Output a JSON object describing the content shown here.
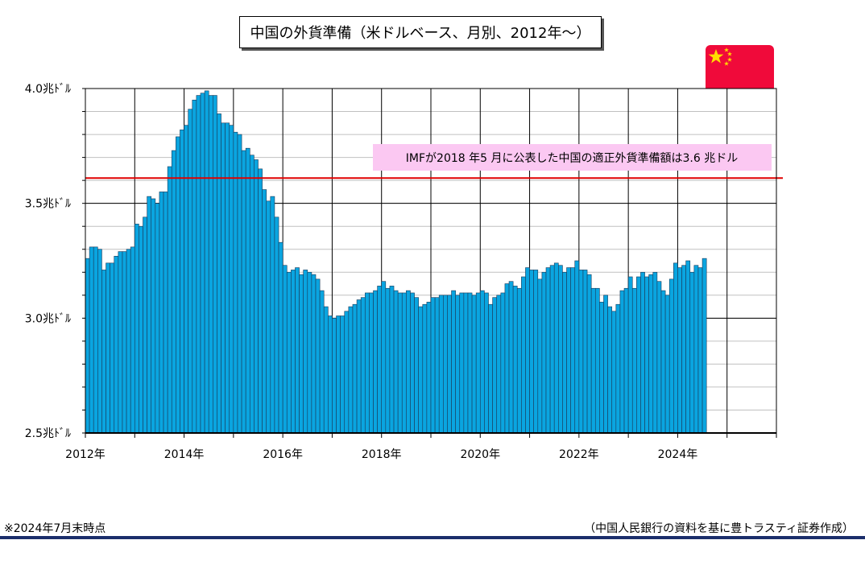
{
  "title": "中国の外貨準備（米ドルベース、月別、2012年～）",
  "flag_icon": "china-flag-icon",
  "note": "※2024年7月末時点",
  "source": "（中国人民銀行の資料を基に豊トラスティ証券作成）",
  "chart_data": {
    "type": "bar",
    "ylim": [
      2.5,
      4.0
    ],
    "y_ticks": [
      {
        "value": 4.0,
        "label": "4.0兆ﾄﾞﾙ"
      },
      {
        "value": 3.5,
        "label": "3.5兆ﾄﾞﾙ"
      },
      {
        "value": 3.0,
        "label": "3.0兆ﾄﾞﾙ"
      },
      {
        "value": 2.5,
        "label": "2.5兆ﾄﾞﾙ"
      }
    ],
    "x_labels": [
      "2012年",
      "2014年",
      "2016年",
      "2018年",
      "2020年",
      "2022年",
      "2024年"
    ],
    "x_start_year": 2012,
    "x_end_year": 2026,
    "bar_color": "#0aa5e0",
    "reference_line": {
      "value": 3.61,
      "color": "#e00000",
      "label": "IMFが2018 年5 月に公表した中国の適正外貨準備額は3.6 兆ドル"
    },
    "values": [
      3.26,
      3.31,
      3.31,
      3.3,
      3.21,
      3.24,
      3.24,
      3.27,
      3.29,
      3.29,
      3.3,
      3.31,
      3.41,
      3.4,
      3.44,
      3.53,
      3.52,
      3.5,
      3.55,
      3.55,
      3.66,
      3.73,
      3.79,
      3.82,
      3.84,
      3.91,
      3.95,
      3.97,
      3.98,
      3.99,
      3.97,
      3.97,
      3.89,
      3.85,
      3.85,
      3.84,
      3.81,
      3.8,
      3.73,
      3.74,
      3.71,
      3.69,
      3.65,
      3.56,
      3.51,
      3.53,
      3.44,
      3.33,
      3.23,
      3.2,
      3.21,
      3.22,
      3.19,
      3.21,
      3.2,
      3.19,
      3.17,
      3.12,
      3.05,
      3.01,
      3.0,
      3.01,
      3.01,
      3.03,
      3.05,
      3.06,
      3.08,
      3.09,
      3.11,
      3.11,
      3.12,
      3.14,
      3.16,
      3.13,
      3.14,
      3.12,
      3.11,
      3.11,
      3.12,
      3.11,
      3.09,
      3.05,
      3.06,
      3.07,
      3.09,
      3.09,
      3.1,
      3.1,
      3.1,
      3.12,
      3.1,
      3.11,
      3.11,
      3.11,
      3.1,
      3.11,
      3.12,
      3.11,
      3.06,
      3.09,
      3.1,
      3.11,
      3.15,
      3.16,
      3.14,
      3.13,
      3.18,
      3.22,
      3.21,
      3.21,
      3.17,
      3.2,
      3.22,
      3.23,
      3.24,
      3.23,
      3.2,
      3.22,
      3.22,
      3.25,
      3.21,
      3.21,
      3.19,
      3.13,
      3.13,
      3.07,
      3.1,
      3.05,
      3.03,
      3.06,
      3.12,
      3.13,
      3.18,
      3.13,
      3.18,
      3.2,
      3.18,
      3.19,
      3.2,
      3.16,
      3.12,
      3.1,
      3.17,
      3.24,
      3.22,
      3.23,
      3.25,
      3.2,
      3.23,
      3.22,
      3.26
    ]
  }
}
